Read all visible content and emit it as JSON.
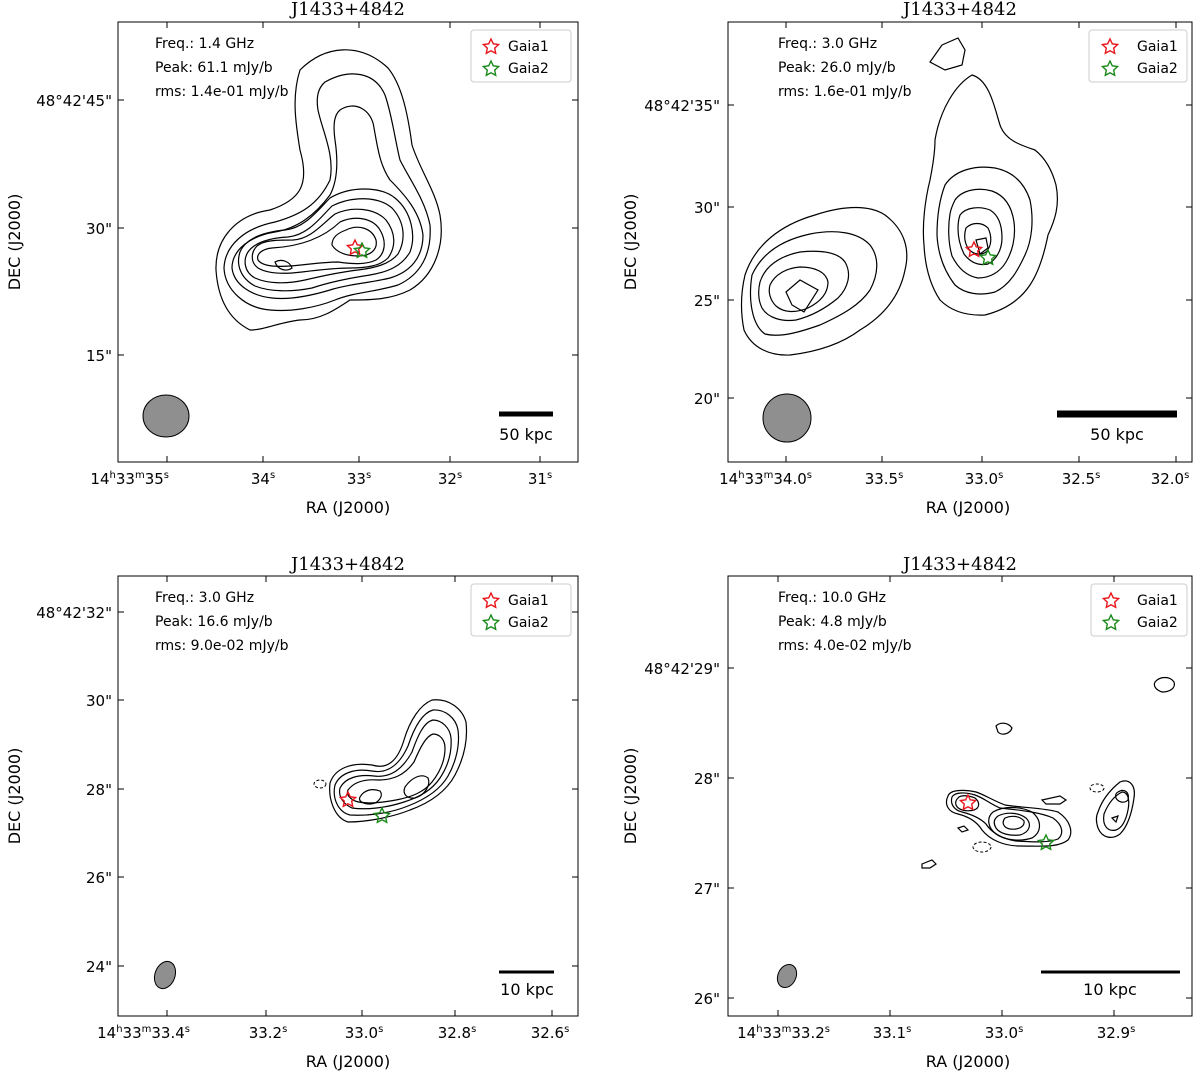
{
  "chart_data": [
    {
      "type": "contour",
      "title": "J1433+4842",
      "xlabel": "RA (J2000)",
      "ylabel": "DEC (J2000)",
      "annotations": {
        "freq": "Freq.: 1.4 GHz",
        "peak": "Peak: 61.1 mJy/b",
        "rms": "rms: 1.4e-01 mJy/b"
      },
      "legend": [
        {
          "label": "Gaia1",
          "color": "#e8151b"
        },
        {
          "label": "Gaia2",
          "color": "#1a8a1a"
        }
      ],
      "xticks": [
        {
          "label": "14h33m35s",
          "h": "14",
          "m": "33",
          "s": "35"
        },
        {
          "label": "34s",
          "s": "34"
        },
        {
          "label": "33s",
          "s": "33"
        },
        {
          "label": "32s",
          "s": "32"
        },
        {
          "label": "31s",
          "s": "31"
        }
      ],
      "yticks": [
        "48°42'45\"",
        "30\"",
        "15\""
      ],
      "scalebar": "50 kpc"
    },
    {
      "type": "contour",
      "title": "J1433+4842",
      "xlabel": "RA (J2000)",
      "ylabel": "DEC (J2000)",
      "annotations": {
        "freq": "Freq.: 3.0 GHz",
        "peak": "Peak: 26.0 mJy/b",
        "rms": "rms: 1.6e-01 mJy/b"
      },
      "legend": [
        {
          "label": "Gaia1",
          "color": "#e8151b"
        },
        {
          "label": "Gaia2",
          "color": "#1a8a1a"
        }
      ],
      "xticks": [
        {
          "label": "14h33m34.0s",
          "h": "14",
          "m": "33",
          "s": "34.0"
        },
        {
          "label": "33.5s",
          "s": "33.5"
        },
        {
          "label": "33.0s",
          "s": "33.0"
        },
        {
          "label": "32.5s",
          "s": "32.5"
        },
        {
          "label": "32.0s",
          "s": "32.0"
        }
      ],
      "yticks": [
        "48°42'35\"",
        "30\"",
        "25\"",
        "20\""
      ],
      "scalebar": "50 kpc"
    },
    {
      "type": "contour",
      "title": "J1433+4842",
      "xlabel": "RA (J2000)",
      "ylabel": "DEC (J2000)",
      "annotations": {
        "freq": "Freq.: 3.0 GHz",
        "peak": "Peak: 16.6 mJy/b",
        "rms": "rms: 9.0e-02 mJy/b"
      },
      "legend": [
        {
          "label": "Gaia1",
          "color": "#e8151b"
        },
        {
          "label": "Gaia2",
          "color": "#1a8a1a"
        }
      ],
      "xticks": [
        {
          "label": "14h33m33.4s",
          "h": "14",
          "m": "33",
          "s": "33.4"
        },
        {
          "label": "33.2s",
          "s": "33.2"
        },
        {
          "label": "33.0s",
          "s": "33.0"
        },
        {
          "label": "32.8s",
          "s": "32.8"
        },
        {
          "label": "32.6s",
          "s": "32.6"
        }
      ],
      "yticks": [
        "48°42'32\"",
        "30\"",
        "28\"",
        "26\"",
        "24\""
      ],
      "scalebar": "10 kpc"
    },
    {
      "type": "contour",
      "title": "J1433+4842",
      "xlabel": "RA (J2000)",
      "ylabel": "DEC (J2000)",
      "annotations": {
        "freq": "Freq.: 10.0 GHz",
        "peak": "Peak: 4.8 mJy/b",
        "rms": "rms: 4.0e-02 mJy/b"
      },
      "legend": [
        {
          "label": "Gaia1",
          "color": "#e8151b"
        },
        {
          "label": "Gaia2",
          "color": "#1a8a1a"
        }
      ],
      "xticks": [
        {
          "label": "14h33m33.2s",
          "h": "14",
          "m": "33",
          "s": "33.2"
        },
        {
          "label": "33.1s",
          "s": "33.1"
        },
        {
          "label": "33.0s",
          "s": "33.0"
        },
        {
          "label": "32.9s",
          "s": "32.9"
        }
      ],
      "yticks": [
        "48°42'29\"",
        "28\"",
        "27\"",
        "26\""
      ],
      "scalebar": "10 kpc"
    }
  ]
}
